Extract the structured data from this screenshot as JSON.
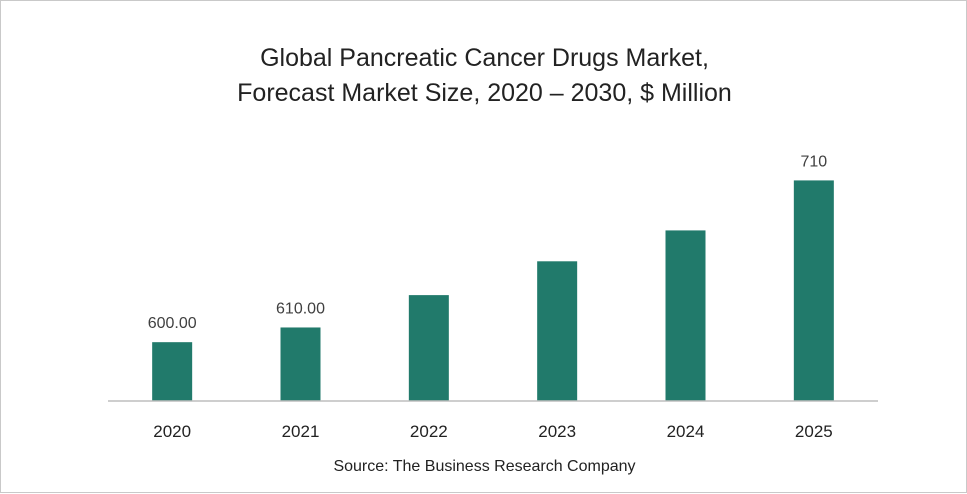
{
  "chart_data": {
    "type": "bar",
    "title_lines": [
      "Global Pancreatic Cancer Drugs Market,",
      "Forecast Market Size, 2020 – 2030, $ Million"
    ],
    "categories": [
      "2020",
      "2021",
      "2022",
      "2023",
      "2024",
      "2025"
    ],
    "values": [
      600,
      610,
      632,
      655,
      676,
      710
    ],
    "data_labels": [
      "600.00",
      "610.00",
      "",
      "",
      "",
      "710"
    ],
    "bar_color": "#217a6b",
    "ylim": [
      560,
      730
    ],
    "grid": false,
    "legend": "none",
    "source": "Source: The Business Research Company"
  }
}
